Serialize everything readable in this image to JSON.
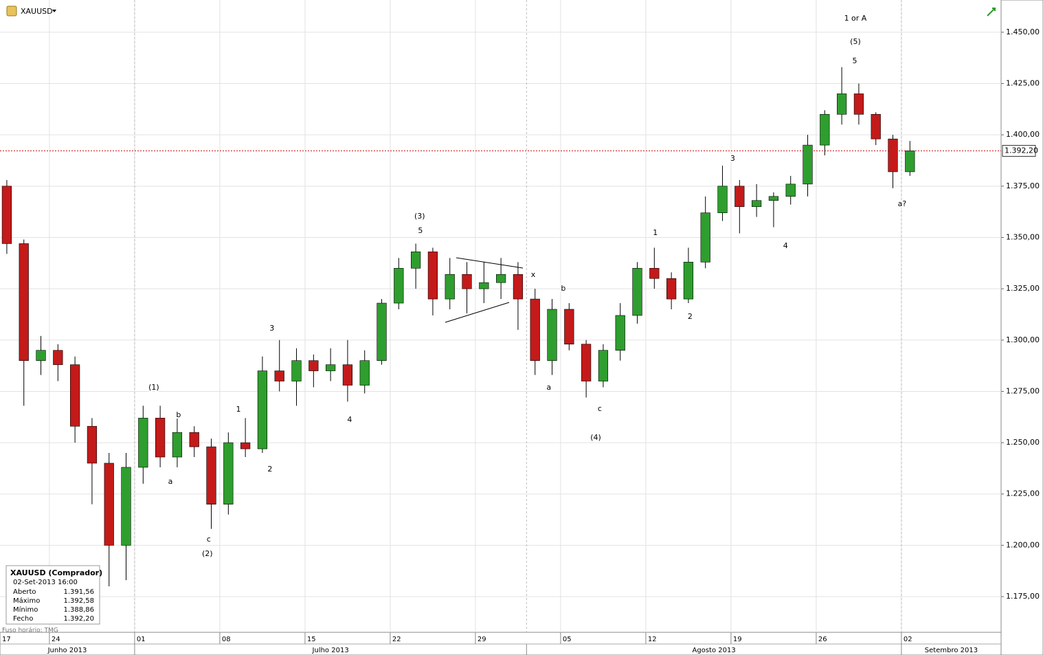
{
  "chart_data": {
    "type": "candlestick",
    "symbol": "XAUUSD",
    "x": [
      0,
      1,
      2,
      3,
      4,
      5,
      6,
      7,
      8,
      9,
      10,
      11,
      12,
      13,
      14,
      15,
      16,
      17,
      18,
      19,
      20,
      21,
      22,
      23,
      24,
      25,
      26,
      27,
      28,
      29,
      30,
      31,
      32,
      33,
      34,
      35,
      36,
      37,
      38,
      39,
      40,
      41,
      42,
      43,
      44,
      45,
      46,
      47,
      48,
      49,
      50,
      51,
      52,
      53
    ],
    "open": [
      1375,
      1347,
      1290,
      1295,
      1288,
      1258,
      1240,
      1200,
      1238,
      1262,
      1243,
      1255,
      1248,
      1220,
      1250,
      1247,
      1285,
      1280,
      1290,
      1285,
      1288,
      1278,
      1290,
      1318,
      1335,
      1343,
      1320,
      1332,
      1325,
      1328,
      1332,
      1320,
      1290,
      1315,
      1298,
      1280,
      1295,
      1312,
      1335,
      1330,
      1320,
      1338,
      1362,
      1375,
      1365,
      1368,
      1370,
      1376,
      1395,
      1410,
      1420,
      1410,
      1398,
      1382
    ],
    "high": [
      1378,
      1349,
      1302,
      1298,
      1292,
      1262,
      1245,
      1245,
      1268,
      1268,
      1262,
      1258,
      1252,
      1255,
      1262,
      1292,
      1300,
      1296,
      1293,
      1296,
      1300,
      1295,
      1320,
      1340,
      1347,
      1345,
      1340,
      1338,
      1338,
      1340,
      1338,
      1325,
      1320,
      1318,
      1300,
      1298,
      1318,
      1338,
      1345,
      1333,
      1345,
      1370,
      1385,
      1378,
      1376,
      1372,
      1380,
      1400,
      1412,
      1433,
      1425,
      1411,
      1400,
      1397
    ],
    "low": [
      1342,
      1268,
      1283,
      1280,
      1250,
      1220,
      1180,
      1183,
      1230,
      1238,
      1238,
      1243,
      1208,
      1215,
      1243,
      1245,
      1275,
      1268,
      1277,
      1280,
      1270,
      1274,
      1288,
      1315,
      1325,
      1312,
      1315,
      1313,
      1318,
      1320,
      1305,
      1283,
      1283,
      1295,
      1272,
      1277,
      1290,
      1308,
      1325,
      1315,
      1318,
      1335,
      1358,
      1352,
      1360,
      1355,
      1366,
      1370,
      1390,
      1405,
      1405,
      1395,
      1374,
      1380
    ],
    "close": [
      1347,
      1290,
      1295,
      1288,
      1258,
      1240,
      1200,
      1238,
      1262,
      1243,
      1255,
      1248,
      1220,
      1250,
      1247,
      1285,
      1280,
      1290,
      1285,
      1288,
      1278,
      1290,
      1318,
      1335,
      1343,
      1320,
      1332,
      1325,
      1328,
      1332,
      1320,
      1290,
      1315,
      1298,
      1280,
      1295,
      1312,
      1335,
      1330,
      1320,
      1338,
      1362,
      1375,
      1365,
      1368,
      1370,
      1376,
      1395,
      1410,
      1420,
      1410,
      1398,
      1382,
      1392.2
    ],
    "up_color": "#2e9e2e",
    "down_color": "#c41a1a",
    "xlim": [
      -0.4,
      58.35
    ],
    "ylim": [
      1157.6,
      1465.7
    ],
    "yticks": [
      {
        "value": 1175,
        "label": "1.175,00"
      },
      {
        "value": 1200,
        "label": "1.200,00"
      },
      {
        "value": 1225,
        "label": "1.225,00"
      },
      {
        "value": 1250,
        "label": "1.250,00"
      },
      {
        "value": 1275,
        "label": "1.275,00"
      },
      {
        "value": 1300,
        "label": "1.300,00"
      },
      {
        "value": 1325,
        "label": "1.325,00"
      },
      {
        "value": 1350,
        "label": "1.350,00"
      },
      {
        "value": 1375,
        "label": "1.375,00"
      },
      {
        "value": 1400,
        "label": "1.400,00"
      },
      {
        "value": 1425,
        "label": "1.425,00"
      },
      {
        "value": 1450,
        "label": "1.450,00"
      }
    ],
    "xticks": [
      {
        "value": -2.5,
        "label": "17"
      },
      {
        "value": 2.5,
        "label": "24"
      },
      {
        "value": 7.5,
        "label": "01"
      },
      {
        "value": 12.5,
        "label": "08"
      },
      {
        "value": 17.5,
        "label": "15"
      },
      {
        "value": 22.5,
        "label": "22"
      },
      {
        "value": 27.5,
        "label": "29"
      },
      {
        "value": 32.5,
        "label": "05"
      },
      {
        "value": 37.5,
        "label": "12"
      },
      {
        "value": 42.5,
        "label": "19"
      },
      {
        "value": 47.5,
        "label": "26"
      },
      {
        "value": 52.5,
        "label": "02"
      }
    ],
    "months": [
      {
        "label": "Junho 2013"
      },
      {
        "value": 7.5,
        "label": "Julho 2013"
      },
      {
        "value": 30.5,
        "label": "Agosto 2013"
      },
      {
        "value": 52.5,
        "label": "Setembro 2013"
      }
    ],
    "grid": true,
    "last_price": {
      "value": 1392.2,
      "label": "1.392,20"
    },
    "annotations": [
      {
        "text": "1 or A",
        "x": 49.8,
        "y": 1456.7
      },
      {
        "text": "(5)",
        "x": 49.8,
        "y": 1445.3
      },
      {
        "text": "5",
        "x": 49.76,
        "y": 1435.9
      },
      {
        "text": "3",
        "x": 42.6,
        "y": 1388.4
      },
      {
        "text": "a?",
        "x": 52.54,
        "y": 1366.3
      },
      {
        "text": "4",
        "x": 45.7,
        "y": 1345.8
      },
      {
        "text": "1",
        "x": 38.06,
        "y": 1352.2
      },
      {
        "text": "2",
        "x": 40.1,
        "y": 1311.3
      },
      {
        "text": "(3)",
        "x": 24.23,
        "y": 1360.2
      },
      {
        "text": "5",
        "x": 24.27,
        "y": 1353.2
      },
      {
        "text": "x",
        "x": 30.89,
        "y": 1331.8
      },
      {
        "text": "b",
        "x": 32.66,
        "y": 1325.1
      },
      {
        "text": "a",
        "x": 31.81,
        "y": 1276.8
      },
      {
        "text": "c",
        "x": 34.8,
        "y": 1266.4
      },
      {
        "text": "(4)",
        "x": 34.56,
        "y": 1252.4
      },
      {
        "text": "(1)",
        "x": 8.63,
        "y": 1276.8
      },
      {
        "text": "b",
        "x": 10.08,
        "y": 1263.4
      },
      {
        "text": "a",
        "x": 9.6,
        "y": 1230.9
      },
      {
        "text": "3",
        "x": 15.56,
        "y": 1305.6
      },
      {
        "text": "1",
        "x": 13.59,
        "y": 1266.1
      },
      {
        "text": "2",
        "x": 15.44,
        "y": 1237.0
      },
      {
        "text": "4",
        "x": 20.12,
        "y": 1261.1
      },
      {
        "text": "c",
        "x": 11.85,
        "y": 1202.8
      },
      {
        "text": "(2)",
        "x": 11.77,
        "y": 1195.8
      }
    ]
  },
  "info_box": {
    "title": "XAUUSD (Comprador)",
    "date": "02-Set-2013 16:00",
    "rows": [
      [
        "Aberto",
        "1.391,56"
      ],
      [
        "Máximo",
        "1.392,58"
      ],
      [
        "Mínimo",
        "1.388,86"
      ],
      [
        "Fecho",
        "1.392,20"
      ]
    ]
  },
  "timezone": "Fuso horário: TMG"
}
